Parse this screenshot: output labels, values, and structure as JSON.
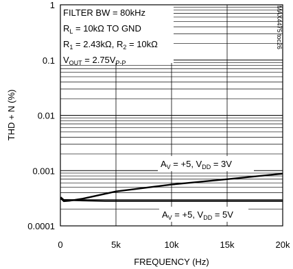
{
  "chart_data": {
    "type": "line",
    "title": "",
    "xlabel": "FREQUENCY (Hz)",
    "ylabel": "THD + N (%)",
    "x_scale": "linear",
    "y_scale": "log",
    "xlim": [
      0,
      20000
    ],
    "ylim": [
      0.0001,
      1
    ],
    "x_ticks": [
      0,
      5000,
      10000,
      15000,
      20000
    ],
    "x_tick_labels": [
      "0",
      "5k",
      "10k",
      "15k",
      "20k"
    ],
    "y_ticks": [
      0.0001,
      0.001,
      0.01,
      0.1,
      1
    ],
    "y_tick_labels": [
      "0.0001",
      "0.001",
      "0.01",
      "0.1",
      "1"
    ],
    "grid": true,
    "watermark": "MAX4475 toc26",
    "conditions": {
      "line1": "FILTER BW = 80kHz",
      "line2": {
        "pre": "R",
        "sub": "L",
        "post": " = 10kΩ TO GND"
      },
      "line3": {
        "pre": "R",
        "sub1": "1",
        "mid": " = 2.43kΩ, R",
        "sub2": "2",
        "post": " = 10kΩ"
      },
      "line4": {
        "pre": "V",
        "sub1": "OUT",
        "mid": " = 2.75V",
        "sub2": "P-P"
      }
    },
    "series": [
      {
        "label": {
          "a": "A",
          "sub1": "V",
          "mid": " = +5, V",
          "sub2": "DD",
          "post": " = 3V"
        },
        "x": [
          20,
          300,
          800,
          2000,
          5000,
          10000,
          15000,
          20000
        ],
        "y": [
          0.00032,
          0.00028,
          0.000285,
          0.00031,
          0.00042,
          0.00056,
          0.0007,
          0.00088
        ]
      },
      {
        "label": {
          "a": "A",
          "sub1": "V",
          "mid": " = +5, V",
          "sub2": "DD",
          "post": " = 5V"
        },
        "x": [
          20,
          300,
          800,
          2000,
          4000,
          8000,
          12000,
          16000,
          20000
        ],
        "y": [
          0.00033,
          0.000295,
          0.000293,
          0.000288,
          0.000282,
          0.000282,
          0.000282,
          0.000282,
          0.000282
        ]
      }
    ]
  }
}
